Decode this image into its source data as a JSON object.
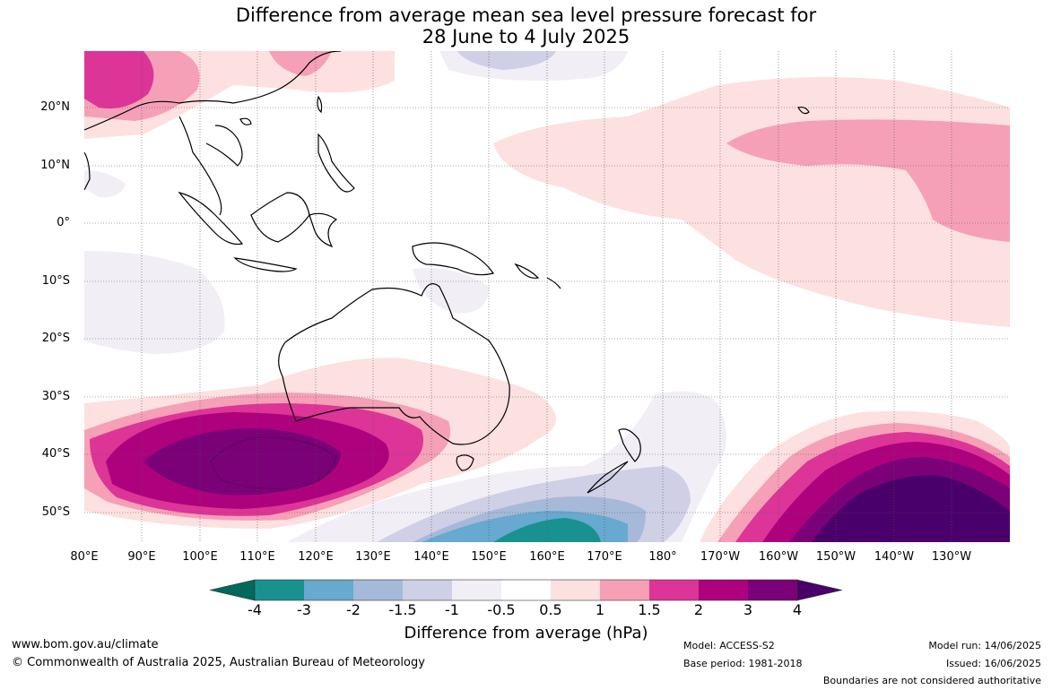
{
  "title": {
    "line1": "Difference from average mean sea level pressure forecast for",
    "line2": "28 June to 4 July 2025"
  },
  "lat_labels": [
    "20°N",
    "10°N",
    "0°",
    "10°S",
    "20°S",
    "30°S",
    "40°S",
    "50°S"
  ],
  "lon_labels": [
    "80°E",
    "90°E",
    "100°E",
    "110°E",
    "120°E",
    "130°E",
    "140°E",
    "150°E",
    "160°E",
    "170°E",
    "180°",
    "170°W",
    "160°W",
    "150°W",
    "140°W",
    "130°W"
  ],
  "colorbar": {
    "title": "Difference from average (hPa)",
    "ticks": [
      "-4",
      "-3",
      "-2",
      "-1.5",
      "-1",
      "-0.5",
      "0.5",
      "1",
      "1.5",
      "2",
      "3",
      "4"
    ],
    "colors": [
      "#00695c",
      "#19928f",
      "#67a9cf",
      "#a6b9d8",
      "#cfcfe6",
      "#f1eef6",
      "#ffffff",
      "#fde0e0",
      "#f5a0b7",
      "#dd3497",
      "#ae017e",
      "#7a0177",
      "#49006a"
    ]
  },
  "footer": {
    "website": "www.bom.gov.au/climate",
    "copyright": "© Commonwealth of Australia 2025, Australian Bureau of Meteorology",
    "model": "Model: ACCESS-S2",
    "base_period": "Base period: 1981-2018",
    "model_run": "Model run: 14/06/2025",
    "issued": "Issued: 16/06/2025",
    "disclaimer": "Boundaries are not considered authoritative"
  }
}
